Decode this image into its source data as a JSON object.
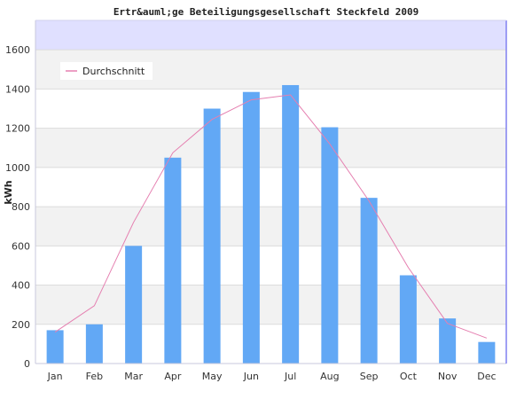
{
  "chart_data": {
    "type": "bar",
    "title": "Ertr&auml;ge Beteiligungsgesellschaft Steckfeld 2009",
    "xlabel": "",
    "ylabel": "kWh",
    "ylim": [
      0,
      1750
    ],
    "y_ticks": [
      0,
      200,
      400,
      600,
      800,
      1000,
      1200,
      1400,
      1600
    ],
    "categories": [
      "Jan",
      "Feb",
      "Mar",
      "Apr",
      "May",
      "Jun",
      "Jul",
      "Aug",
      "Sep",
      "Oct",
      "Nov",
      "Dec"
    ],
    "series": [
      {
        "type": "bar",
        "values": [
          170,
          200,
          600,
          1050,
          1300,
          1385,
          1420,
          1205,
          845,
          450,
          230,
          110
        ],
        "color": "#62a8f5"
      },
      {
        "type": "line",
        "name": "Durchschnitt",
        "values": [
          160,
          295,
          720,
          1075,
          1245,
          1345,
          1370,
          1120,
          830,
          490,
          205,
          130
        ],
        "color": "#e57fb0"
      }
    ],
    "legend_position": "top-left",
    "grid": true,
    "background_bands": true,
    "top_band_color": "#e0e0ff"
  }
}
